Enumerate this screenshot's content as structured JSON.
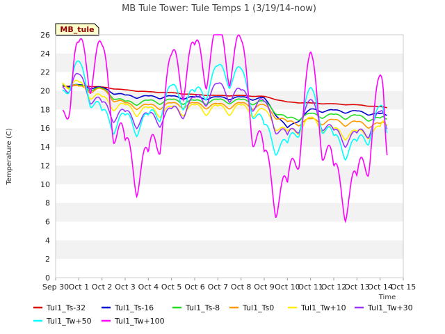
{
  "chart_data": {
    "type": "line",
    "title": "MB Tule Tower: Tule Temps 1 (3/19/14-now)",
    "xlabel": "Time",
    "ylabel": "Temperature (C)",
    "badge": "MB_tule",
    "ylim": [
      0,
      26
    ],
    "yticks": [
      0,
      2,
      4,
      6,
      8,
      10,
      12,
      14,
      16,
      18,
      20,
      22,
      24,
      26
    ],
    "xlim": [
      0,
      15
    ],
    "xticks": [
      {
        "v": 0,
        "label": "Sep 30"
      },
      {
        "v": 1,
        "label": "Oct 1"
      },
      {
        "v": 2,
        "label": "Oct 2"
      },
      {
        "v": 3,
        "label": "Oct 3"
      },
      {
        "v": 4,
        "label": "Oct 4"
      },
      {
        "v": 5,
        "label": "Oct 5"
      },
      {
        "v": 6,
        "label": "Oct 6"
      },
      {
        "v": 7,
        "label": "Oct 7"
      },
      {
        "v": 8,
        "label": "Oct 8"
      },
      {
        "v": 9,
        "label": "Oct 9"
      },
      {
        "v": 10,
        "label": "Oct 10"
      },
      {
        "v": 11,
        "label": "Oct 11"
      },
      {
        "v": 12,
        "label": "Oct 12"
      },
      {
        "v": 13,
        "label": "Oct 13"
      },
      {
        "v": 14,
        "label": "Oct 14"
      },
      {
        "v": 15,
        "label": "Oct 15"
      }
    ],
    "x": [
      0.3,
      1.0,
      2.0,
      3.0,
      4.0,
      5.0,
      6.0,
      7.0,
      8.0,
      9.0,
      10.0,
      11.0,
      12.0,
      13.0,
      14.0,
      14.3
    ],
    "series": [
      {
        "name": "Tul1_Ts-32",
        "color": "#dd0000",
        "values": [
          20.5,
          20.6,
          20.4,
          20.1,
          19.9,
          19.8,
          19.6,
          19.5,
          19.5,
          19.4,
          18.8,
          18.7,
          18.6,
          18.5,
          18.3,
          18.2
        ]
      },
      {
        "name": "Tul1_Ts-16",
        "color": "#0000cc",
        "values": [
          20.6,
          20.6,
          20.3,
          19.5,
          19.4,
          19.4,
          19.3,
          19.3,
          19.3,
          19.2,
          16.0,
          18.0,
          17.9,
          17.8,
          17.5,
          17.4
        ]
      },
      {
        "name": "Tul1_Ts-8",
        "color": "#22dd22",
        "values": [
          20.7,
          20.5,
          20.2,
          18.8,
          18.9,
          19.0,
          18.9,
          19.0,
          19.0,
          18.8,
          17.0,
          17.5,
          17.4,
          17.3,
          17.0,
          17.0
        ]
      },
      {
        "name": "Tul1_Ts0",
        "color": "#ff9900",
        "values": [
          20.8,
          20.4,
          20.1,
          18.6,
          18.4,
          18.6,
          18.6,
          18.5,
          18.6,
          18.4,
          16.6,
          16.9,
          16.8,
          16.6,
          16.4,
          16.3
        ]
      },
      {
        "name": "Tul1_Tw+10",
        "color": "#ffee00",
        "values": [
          20.9,
          20.8,
          19.2,
          18.3,
          18.0,
          18.1,
          18.3,
          18.2,
          18.3,
          17.8,
          15.5,
          17.0,
          15.8,
          15.5,
          16.0,
          16.5
        ]
      },
      {
        "name": "Tul1_Tw+30",
        "color": "#9933ff",
        "values": [
          20.5,
          21.5,
          18.5,
          17.5,
          17.2,
          17.8,
          19.0,
          20.5,
          19.8,
          18.6,
          15.0,
          18.8,
          15.5,
          15.2,
          17.5,
          16.0
        ]
      },
      {
        "name": "Tul1_Tw+50",
        "color": "#00ffff",
        "values": [
          20.2,
          22.8,
          17.5,
          17.0,
          17.0,
          20.2,
          19.5,
          22.3,
          22.0,
          16.0,
          14.0,
          20.0,
          14.8,
          14.2,
          18.0,
          15.6
        ]
      },
      {
        "name": "Tul1_Tw+100",
        "color": "#ff00ff",
        "values": [
          18.2,
          24.3,
          24.0,
          13.8,
          12.5,
          23.0,
          24.0,
          25.3,
          24.6,
          12.6,
          9.2,
          23.3,
          11.0,
          10.0,
          20.8,
          13.4
        ]
      }
    ],
    "legend": "bottom",
    "grid": "alternating horizontal bands"
  }
}
